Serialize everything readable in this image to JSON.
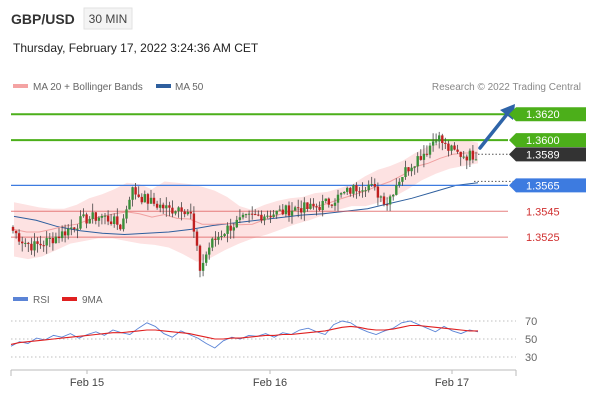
{
  "header": {
    "symbol": "GBP/USD",
    "timeframe": "30 MIN",
    "datetime": "Thursday, February 17, 2022 3:24:36 AM CET"
  },
  "legend": {
    "items": [
      {
        "label": "MA 20 + Bollinger Bands",
        "color": "#f4a3a3"
      },
      {
        "label": "MA 50",
        "color": "#2e5f9e"
      }
    ],
    "credit": "Research © 2022 Trading Central"
  },
  "rsi_legend": {
    "items": [
      {
        "label": "RSI",
        "color": "#5b84d6"
      },
      {
        "label": "9MA",
        "color": "#e02020"
      }
    ]
  },
  "colors": {
    "resistance": "#4caf1a",
    "support": "#3d7be0",
    "pivot_red": "#e06060",
    "current": "#333333",
    "arrow": "#2e64a8",
    "bb_fill": "#fde2e2",
    "candle_up": "#3a8f3a",
    "candle_down": "#c02020"
  },
  "chart_data": [
    {
      "type": "candlestick",
      "x_tick_labels": [
        "Feb 15",
        "Feb 16",
        "Feb 17"
      ],
      "y_range": [
        1.3488,
        1.3631
      ],
      "current_price": "1.3589",
      "levels": [
        {
          "value": 1.362,
          "label": "1.3620",
          "kind": "resistance"
        },
        {
          "value": 1.36,
          "label": "1.3600",
          "kind": "resistance"
        },
        {
          "value": 1.3565,
          "label": "1.3565",
          "kind": "support"
        },
        {
          "value": 1.3545,
          "label": "1.3545",
          "kind": "pivot"
        },
        {
          "value": 1.3525,
          "label": "1.3525",
          "kind": "pivot"
        }
      ],
      "close_path": [
        1.353,
        1.3522,
        1.3518,
        1.352,
        1.3524,
        1.3528,
        1.3533,
        1.3538,
        1.354,
        1.3541,
        1.3538,
        1.3533,
        1.3562,
        1.3556,
        1.3552,
        1.3549,
        1.3546,
        1.3549,
        1.3544,
        1.35,
        1.3519,
        1.3527,
        1.3533,
        1.3537,
        1.354,
        1.3542,
        1.3543,
        1.3544,
        1.3546,
        1.3548,
        1.3547,
        1.3549,
        1.3552,
        1.3556,
        1.356,
        1.3564,
        1.3566,
        1.3559,
        1.3552,
        1.3568,
        1.3578,
        1.3586,
        1.3592,
        1.3604,
        1.3594,
        1.359,
        1.3588,
        1.3589
      ],
      "bollinger_upper": [
        1.3552,
        1.355,
        1.3548,
        1.3547,
        1.3547,
        1.355,
        1.3555,
        1.3558,
        1.3562,
        1.3567,
        1.3566,
        1.3562,
        1.3568,
        1.3567,
        1.3566,
        1.3564,
        1.3561,
        1.3556,
        1.3549,
        1.3546,
        1.355,
        1.3553,
        1.3555,
        1.3556,
        1.3559,
        1.356,
        1.3563,
        1.3566,
        1.3572,
        1.3577,
        1.358,
        1.3584,
        1.359,
        1.3595,
        1.3598,
        1.36,
        1.36,
        1.3598
      ],
      "bollinger_lower": [
        1.351,
        1.3508,
        1.351,
        1.3515,
        1.352,
        1.3522,
        1.3524,
        1.3524,
        1.3522,
        1.352,
        1.3519,
        1.3517,
        1.3512,
        1.3506,
        1.3509,
        1.3515,
        1.352,
        1.3524,
        1.3527,
        1.3531,
        1.3535,
        1.3538,
        1.3542,
        1.3546,
        1.3549,
        1.3549,
        1.3552,
        1.3556,
        1.3562,
        1.3569,
        1.3574,
        1.3578,
        1.358,
        1.3582
      ],
      "ma50": [
        1.3541,
        1.3538,
        1.3533,
        1.353,
        1.3528,
        1.3527,
        1.3528,
        1.3529,
        1.3531,
        1.3534,
        1.3536,
        1.3538,
        1.354,
        1.3542,
        1.3543,
        1.3545,
        1.3547,
        1.3551,
        1.3555,
        1.356,
        1.3565,
        1.3567
      ]
    },
    {
      "type": "line",
      "name": "RSI",
      "y_tick_labels": [
        "70",
        "50",
        "30"
      ],
      "y_ticks": [
        70,
        50,
        30
      ],
      "y_range": [
        20,
        80
      ],
      "series": [
        {
          "name": "RSI",
          "color": "#5b84d6",
          "values": [
            42,
            47,
            45,
            51,
            49,
            54,
            52,
            56,
            51,
            55,
            58,
            54,
            60,
            57,
            55,
            62,
            68,
            64,
            56,
            52,
            59,
            55,
            51,
            45,
            40,
            48,
            52,
            50,
            54,
            53,
            56,
            52,
            57,
            55,
            60,
            62,
            58,
            55,
            66,
            70,
            68,
            62,
            58,
            55,
            59,
            62,
            68,
            70,
            66,
            62,
            58,
            64,
            59,
            56,
            60,
            58
          ]
        },
        {
          "name": "9MA",
          "color": "#e02020",
          "values": [
            44,
            46,
            47,
            48,
            49,
            50,
            51,
            52,
            53,
            54,
            55,
            56,
            57,
            57,
            58,
            59,
            60,
            60,
            59,
            58,
            57,
            56,
            54,
            52,
            50,
            50,
            51,
            51,
            52,
            53,
            54,
            54,
            55,
            55,
            56,
            57,
            58,
            59,
            61,
            63,
            64,
            63,
            61,
            60,
            60,
            61,
            63,
            65,
            65,
            64,
            63,
            62,
            61,
            60,
            59,
            59
          ]
        }
      ]
    }
  ]
}
